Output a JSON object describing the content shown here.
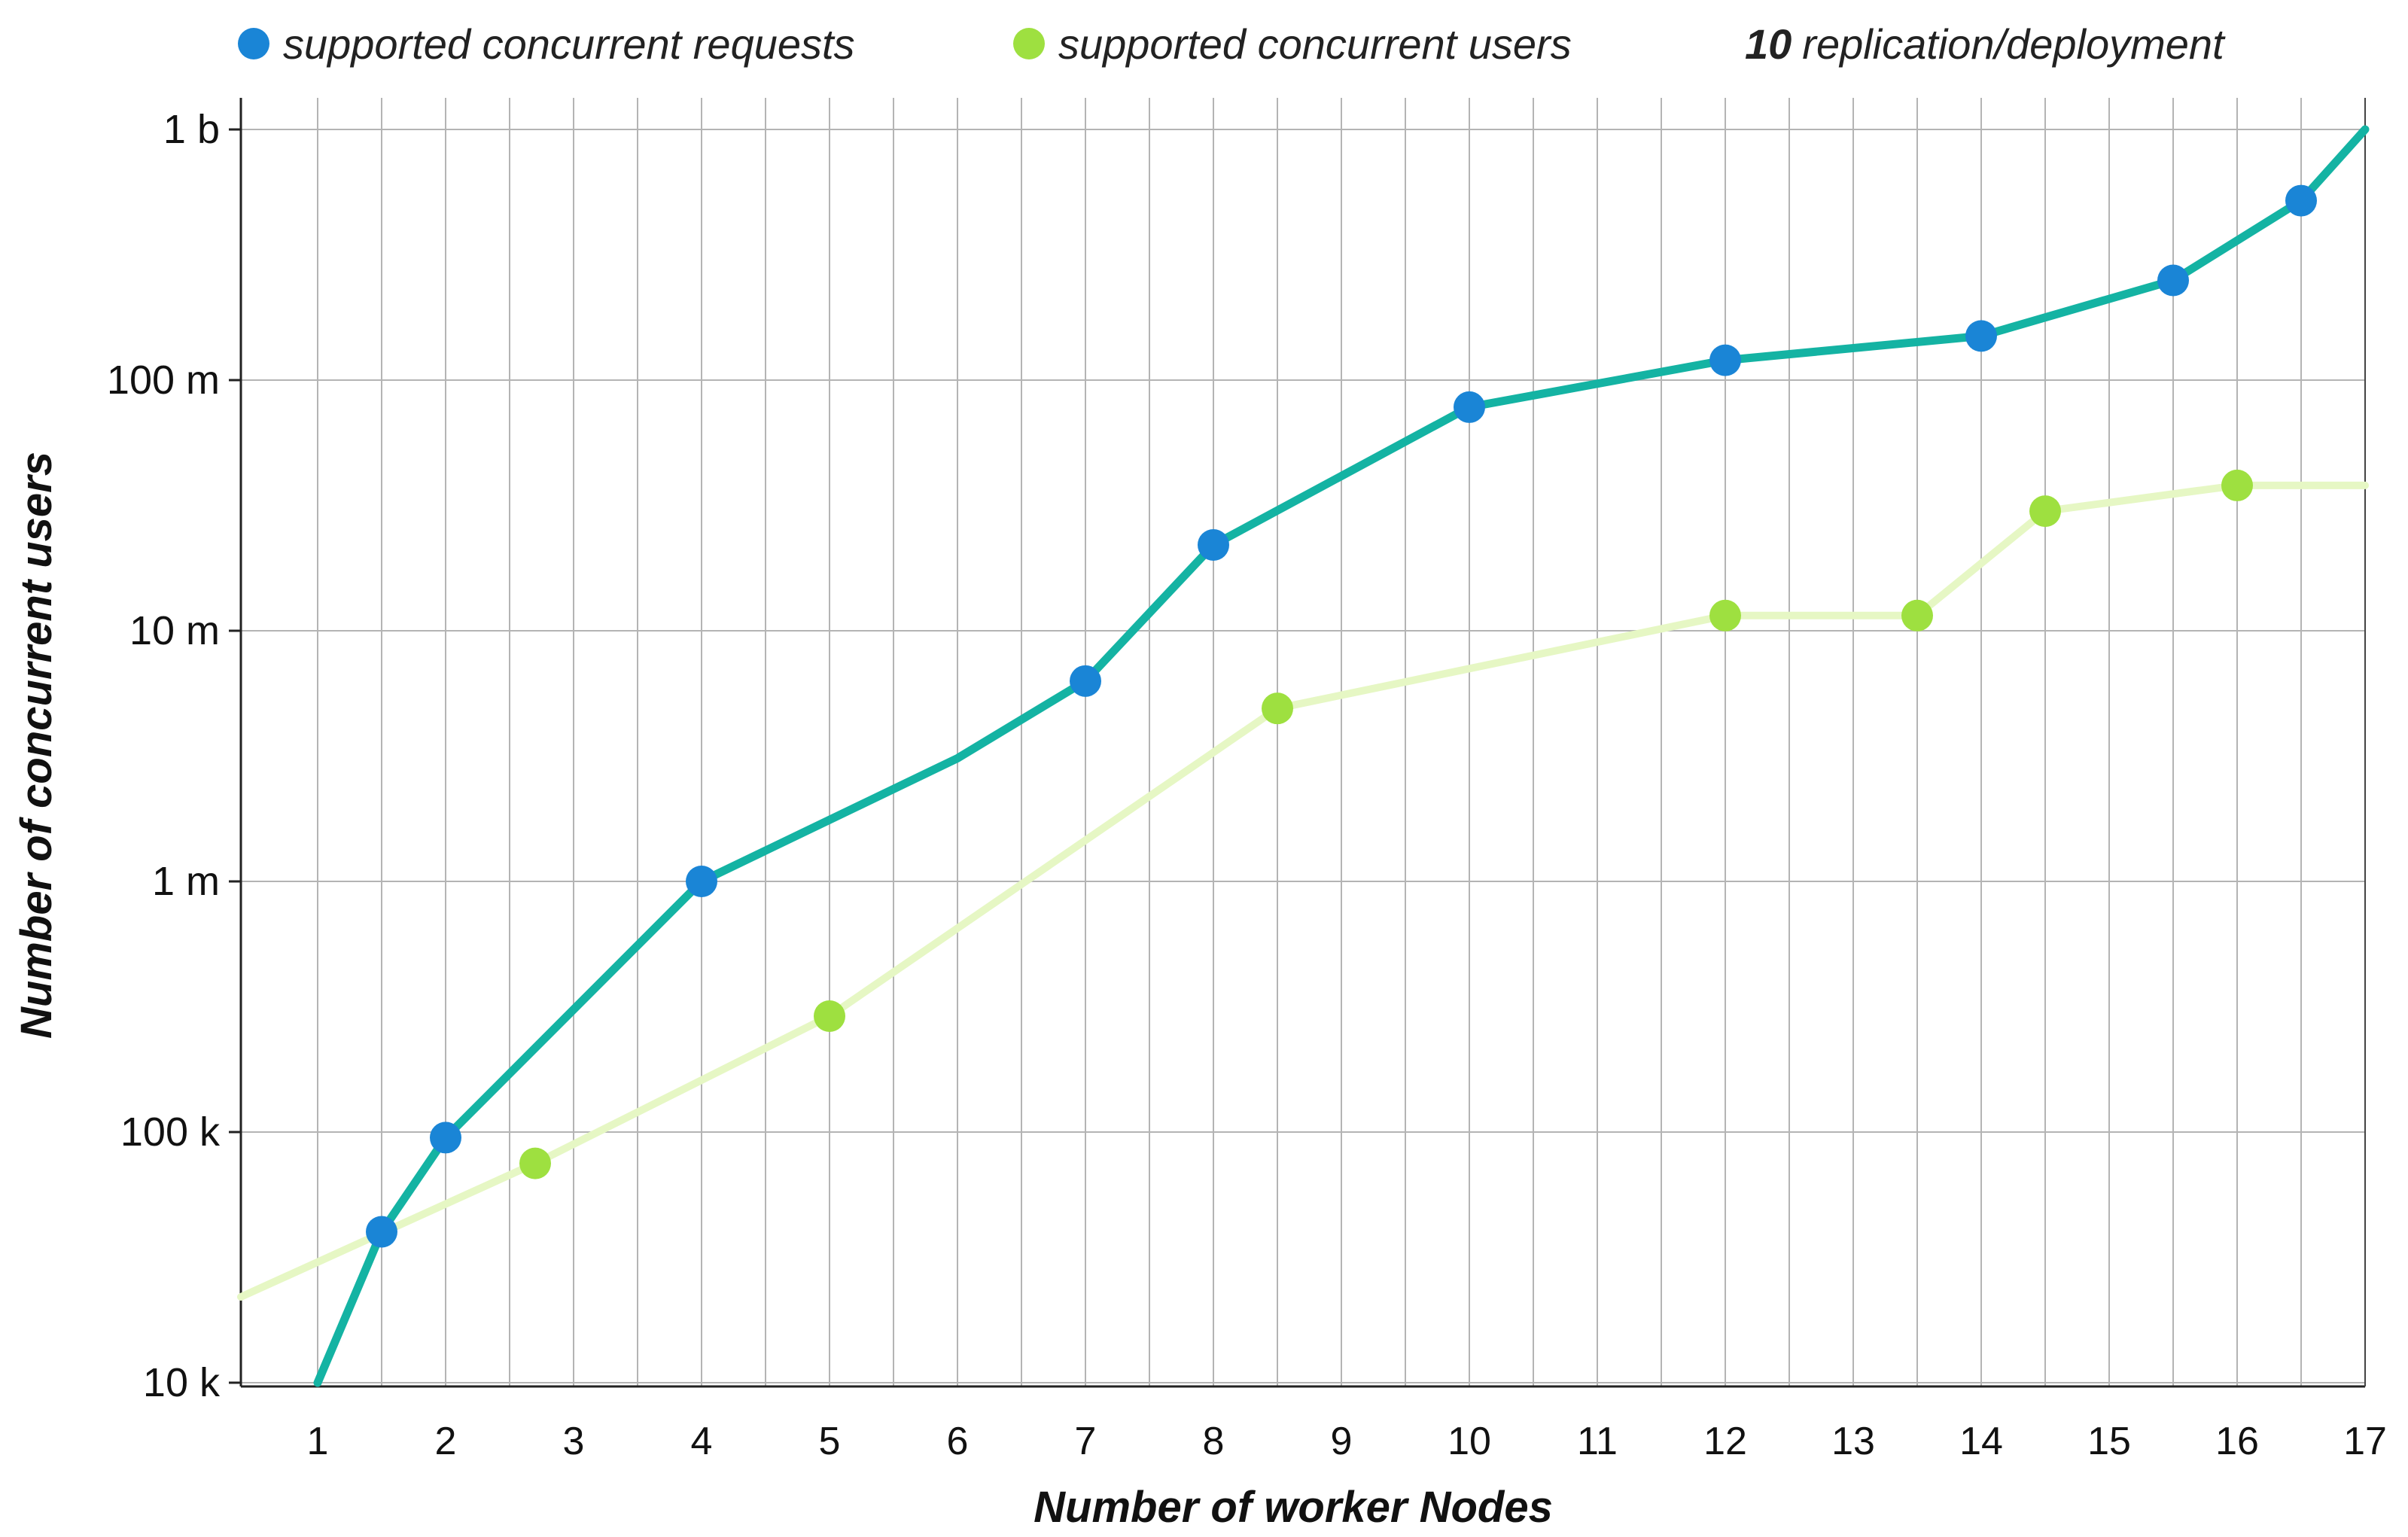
{
  "chart_data": {
    "type": "line",
    "title": "",
    "xlabel": "Number of worker Nodes",
    "ylabel": "Number of concurrent users",
    "y_scale": "log",
    "xlim": [
      0.4,
      17
    ],
    "ylim": [
      10000,
      1000000000
    ],
    "x_ticks": [
      1,
      2,
      3,
      4,
      5,
      6,
      7,
      8,
      9,
      10,
      11,
      12,
      13,
      14,
      15,
      16,
      17
    ],
    "x_tick_labels": [
      "1",
      "2",
      "3",
      "4",
      "5",
      "6",
      "7",
      "8",
      "9",
      "10",
      "11",
      "12",
      "13",
      "14",
      "15",
      "16",
      "17"
    ],
    "y_ticks": [
      10000,
      100000,
      1000000,
      10000000,
      100000000,
      1000000000
    ],
    "y_tick_labels": [
      "10 k",
      "100 k",
      "1 m",
      "10 m",
      "100 m",
      "1 b"
    ],
    "grid": true,
    "legend": {
      "position": "top",
      "note_bold": "10",
      "note_text": "replication/deployment"
    },
    "series": [
      {
        "name": "supported concurrent requests",
        "line_color": "#14b3a3",
        "marker_color": "#1a85d6",
        "points": [
          {
            "x": 1,
            "y": 10000,
            "marker": false
          },
          {
            "x": 1.5,
            "y": 40000,
            "marker": true
          },
          {
            "x": 2,
            "y": 95000,
            "marker": true
          },
          {
            "x": 4,
            "y": 1000000,
            "marker": true
          },
          {
            "x": 6,
            "y": 3100000,
            "marker": false
          },
          {
            "x": 7,
            "y": 6300000,
            "marker": true
          },
          {
            "x": 8,
            "y": 22000000,
            "marker": true
          },
          {
            "x": 10,
            "y": 78000000,
            "marker": true
          },
          {
            "x": 12,
            "y": 120000000,
            "marker": true
          },
          {
            "x": 14,
            "y": 150000000,
            "marker": true
          },
          {
            "x": 15.5,
            "y": 250000000,
            "marker": true
          },
          {
            "x": 16.5,
            "y": 520000000,
            "marker": true
          },
          {
            "x": 17,
            "y": 1000000000,
            "marker": false
          }
        ]
      },
      {
        "name": "supported concurrent users",
        "line_color": "#e6f7c4",
        "marker_color": "#9ee040",
        "points": [
          {
            "x": 0.4,
            "y": 22000,
            "marker": false
          },
          {
            "x": 2.7,
            "y": 75000,
            "marker": true
          },
          {
            "x": 5,
            "y": 290000,
            "marker": true
          },
          {
            "x": 8.5,
            "y": 4900000,
            "marker": true
          },
          {
            "x": 12,
            "y": 11500000,
            "marker": true
          },
          {
            "x": 13.5,
            "y": 11500000,
            "marker": true
          },
          {
            "x": 14.5,
            "y": 30000000,
            "marker": true
          },
          {
            "x": 16,
            "y": 38000000,
            "marker": true
          },
          {
            "x": 17,
            "y": 38000000,
            "marker": false
          }
        ]
      }
    ]
  }
}
